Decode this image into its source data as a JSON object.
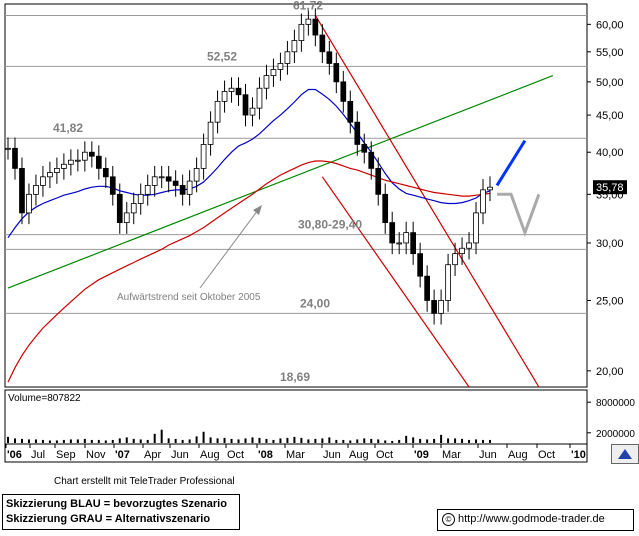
{
  "chart_data": {
    "type": "candlestick",
    "price_axis": {
      "scale": "log",
      "ylim": [
        19.0,
        64.0
      ],
      "tick_labels": [
        "60,00",
        "55,00",
        "50,00",
        "45,00",
        "40,00",
        "35,00",
        "30,00",
        "25,00",
        "20,00"
      ],
      "tick_values": [
        60,
        55,
        50,
        45,
        40,
        35,
        30,
        25,
        20
      ]
    },
    "x_axis": {
      "tick_labels": [
        "'06",
        "Jul",
        "Sep",
        "Nov",
        "'07",
        "Apr",
        "Jun",
        "Aug",
        "Oct",
        "'08",
        "Mar",
        "Jun",
        "Aug",
        "Oct",
        "'09",
        "Mar",
        "Jun",
        "Aug",
        "Oct",
        "'10"
      ],
      "bold_labels": [
        "'06",
        "'07",
        "'08",
        "'09",
        "'10"
      ]
    },
    "last_price_label": "35,78",
    "annotations": [
      {
        "text": "61,72",
        "value": 61.72
      },
      {
        "text": "52,52",
        "value": 52.52
      },
      {
        "text": "41,82",
        "value": 41.82
      },
      {
        "text": "30,80-29,40",
        "value": 30.8
      },
      {
        "text": "24,00",
        "value": 24.0
      },
      {
        "text": "18,69",
        "value": 18.69
      },
      {
        "text": "Aufwärtstrend seit Oktober 2005"
      }
    ],
    "horizontal_levels": [
      61.72,
      52.52,
      41.82,
      30.8,
      29.4,
      24.0
    ],
    "series": [
      {
        "name": "price",
        "color": "#000000",
        "values": [
          40.5,
          38,
          33,
          35,
          36,
          37,
          37.5,
          38,
          38.5,
          39,
          39,
          40,
          39.5,
          38,
          37,
          35,
          32,
          33,
          34,
          35,
          36,
          37,
          37,
          36.5,
          36,
          35,
          36.5,
          38,
          41,
          44,
          47,
          48.5,
          49,
          48,
          45,
          46,
          49,
          51,
          52,
          53,
          55,
          57,
          60,
          61,
          58,
          55,
          53,
          50,
          47,
          44,
          41,
          40,
          38,
          35,
          32,
          30,
          30,
          31,
          29,
          27,
          25,
          24,
          25,
          28,
          29,
          29.5,
          30,
          33,
          35.5,
          35.8
        ]
      },
      {
        "name": "sma-blue",
        "color": "#0000cc",
        "values": [
          30.5,
          31.5,
          32.4,
          33.1,
          33.6,
          34.0,
          34.3,
          34.6,
          34.9,
          35.1,
          35.3,
          35.6,
          35.8,
          35.9,
          35.9,
          35.7,
          35.4,
          35.2,
          35.0,
          34.9,
          34.9,
          35.0,
          35.2,
          35.4,
          35.5,
          35.5,
          35.6,
          35.9,
          36.4,
          37.2,
          38.1,
          39.1,
          40.0,
          40.8,
          41.2,
          41.7,
          42.4,
          43.3,
          44.2,
          45.0,
          45.9,
          46.9,
          48.0,
          48.8,
          48.8,
          48.1,
          47.3,
          46.3,
          45.1,
          43.8,
          42.5,
          41.2,
          40.0,
          38.7,
          37.4,
          36.3,
          35.6,
          35.1,
          34.9,
          34.7,
          34.5,
          34.3,
          34.1,
          34.0,
          34.0,
          34.1,
          34.3,
          34.6,
          35.1,
          35.4
        ]
      },
      {
        "name": "sma-red",
        "color": "#cc0000",
        "values": [
          19.3,
          20.2,
          21.0,
          21.7,
          22.3,
          22.9,
          23.4,
          23.9,
          24.4,
          24.9,
          25.4,
          25.9,
          26.3,
          26.7,
          27.0,
          27.3,
          27.6,
          27.9,
          28.2,
          28.5,
          28.8,
          29.1,
          29.4,
          29.8,
          30.1,
          30.4,
          30.7,
          31.1,
          31.5,
          32.0,
          32.5,
          33.0,
          33.5,
          34.0,
          34.5,
          35.0,
          35.6,
          36.2,
          36.7,
          37.2,
          37.6,
          38.0,
          38.4,
          38.7,
          38.9,
          38.9,
          38.8,
          38.6,
          38.3,
          38.0,
          37.8,
          37.5,
          37.2,
          36.9,
          36.6,
          36.4,
          36.2,
          36.0,
          35.8,
          35.6,
          35.4,
          35.2,
          35.1,
          35.0,
          34.9,
          34.8,
          34.8,
          34.9,
          35.0,
          35.1
        ]
      },
      {
        "name": "volume",
        "color": "#000000",
        "values": [
          1.2,
          0.9,
          0.8,
          0.7,
          0.7,
          0.6,
          0.5,
          0.5,
          0.6,
          0.7,
          0.7,
          0.8,
          0.6,
          0.6,
          0.5,
          0.6,
          0.9,
          1.1,
          0.8,
          0.7,
          0.6,
          1.8,
          2.6,
          0.9,
          0.8,
          0.6,
          0.7,
          1.3,
          2.2,
          1.1,
          0.9,
          1.0,
          0.8,
          0.7,
          0.9,
          1.1,
          1.0,
          0.8,
          0.6,
          0.9,
          1.0,
          1.2,
          1.0,
          0.7,
          0.8,
          0.9,
          1.1,
          0.6,
          0.6,
          0.5,
          0.7,
          0.9,
          0.8,
          0.7,
          0.5,
          0.4,
          0.6,
          1.4,
          1.1,
          0.8,
          0.7,
          0.8,
          1.6,
          0.9,
          0.9,
          0.8,
          0.6,
          0.7,
          0.6,
          0.6
        ]
      }
    ],
    "volume_panel": {
      "label": "Volume=807822",
      "tick_labels": [
        "8000000",
        "2000000"
      ],
      "tick_values": [
        8.0,
        2.0
      ],
      "ylim": [
        0,
        10
      ]
    },
    "trendlines": [
      {
        "color": "#008800",
        "from": {
          "index": 0,
          "value": 26.0
        },
        "to": {
          "index": 78,
          "value": 51.0
        }
      },
      {
        "color": "#cc0000",
        "from": {
          "index": 44,
          "value": 61.72
        },
        "to": {
          "index": 76,
          "value": 19.0
        }
      },
      {
        "color": "#cc0000",
        "from": {
          "index": 45,
          "value": 37.0
        },
        "to": {
          "index": 66,
          "value": 19.0
        }
      }
    ],
    "scenarios": [
      {
        "name": "BLAU",
        "color": "#0033ff",
        "from": {
          "index": 70,
          "value": 36.0
        },
        "to": {
          "index": 74,
          "value": 41.5
        }
      },
      {
        "name": "GRAU",
        "color": "#aaaaaa",
        "points": [
          {
            "index": 70,
            "value": 35.0
          },
          {
            "index": 72,
            "value": 35.0
          },
          {
            "index": 74,
            "value": 31.0
          },
          {
            "index": 76,
            "value": 35.0
          }
        ]
      }
    ]
  },
  "footer": {
    "credit": "Chart erstellt mit TeleTrader Professional",
    "legend_blue": "Skizzierung BLAU = bevorzugtes Szenario",
    "legend_gray": "Skizzierung GRAU = Alternativszenario",
    "url": "http://www.godmode-trader.de"
  },
  "icons": [
    "copyright-icon",
    "chart-nav-icon"
  ]
}
